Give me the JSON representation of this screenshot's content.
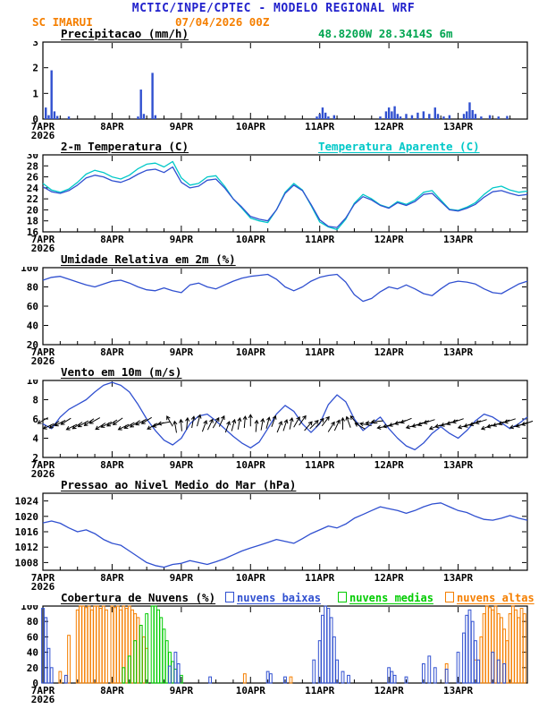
{
  "header": {
    "title": "MCTIC/INPE/CPTEC - MODELO REGIONAL WRF",
    "station": "SC IMARUI",
    "run": "07/04/2026 00Z",
    "coords": "48.8200W 28.3414S 6m"
  },
  "colors": {
    "header_blue": "#2222cc",
    "orange": "#f57f00",
    "green": "#00a550",
    "line_blue": "#3050d0",
    "cyan": "#00c8c8",
    "black": "#000000"
  },
  "xaxis": {
    "ticks": [
      "7APR",
      "8APR",
      "9APR",
      "10APR",
      "11APR",
      "12APR",
      "13APR"
    ],
    "year": "2026",
    "hours_total": 168,
    "tick_hours": [
      0,
      24,
      48,
      72,
      96,
      120,
      144
    ]
  },
  "chart_data": [
    {
      "type": "bar",
      "title": "Precipitacao (mm/h)",
      "ylim": [
        0,
        3
      ],
      "yticks": [
        0,
        1,
        2,
        3
      ],
      "bar_color": "#3050d0",
      "bars": [
        [
          1,
          0.45
        ],
        [
          2,
          0.15
        ],
        [
          3,
          1.9
        ],
        [
          4,
          0.3
        ],
        [
          5,
          0.12
        ],
        [
          9,
          0.1
        ],
        [
          33,
          0.1
        ],
        [
          34,
          1.15
        ],
        [
          35,
          0.2
        ],
        [
          38,
          1.8
        ],
        [
          39,
          0.15
        ],
        [
          95,
          0.1
        ],
        [
          96,
          0.2
        ],
        [
          97,
          0.45
        ],
        [
          98,
          0.25
        ],
        [
          99,
          0.1
        ],
        [
          101,
          0.15
        ],
        [
          117,
          0.1
        ],
        [
          119,
          0.3
        ],
        [
          120,
          0.45
        ],
        [
          121,
          0.3
        ],
        [
          122,
          0.5
        ],
        [
          123,
          0.2
        ],
        [
          124,
          0.1
        ],
        [
          126,
          0.2
        ],
        [
          128,
          0.15
        ],
        [
          130,
          0.25
        ],
        [
          132,
          0.3
        ],
        [
          134,
          0.2
        ],
        [
          136,
          0.45
        ],
        [
          137,
          0.2
        ],
        [
          139,
          0.1
        ],
        [
          141,
          0.15
        ],
        [
          146,
          0.2
        ],
        [
          147,
          0.3
        ],
        [
          148,
          0.65
        ],
        [
          149,
          0.35
        ],
        [
          150,
          0.2
        ],
        [
          152,
          0.1
        ],
        [
          155,
          0.15
        ],
        [
          158,
          0.1
        ],
        [
          161,
          0.12
        ]
      ]
    },
    {
      "type": "line",
      "title": "2-m Temperatura (C)",
      "right_label": "Temperatura Aparente (C)",
      "ylim": [
        16,
        30
      ],
      "yticks": [
        16,
        18,
        20,
        22,
        24,
        26,
        28,
        30
      ],
      "x_step": 3,
      "series": [
        {
          "name": "Temperatura Aparente (C)",
          "color": "#00c8c8",
          "values": [
            24.8,
            23.6,
            23.2,
            23.8,
            25.0,
            26.5,
            27.2,
            26.8,
            26.0,
            25.6,
            26.3,
            27.5,
            28.3,
            28.5,
            27.8,
            28.8,
            25.8,
            24.5,
            24.8,
            26.0,
            26.2,
            24.3,
            22.0,
            20.3,
            18.5,
            18.0,
            17.7,
            20.0,
            23.2,
            24.8,
            23.6,
            20.8,
            17.8,
            16.9,
            16.4,
            18.3,
            21.2,
            22.8,
            22.0,
            20.9,
            20.4,
            21.5,
            21.0,
            21.8,
            23.2,
            23.5,
            21.8,
            20.1,
            19.9,
            20.5,
            21.3,
            22.8,
            24.0,
            24.3,
            23.6,
            23.2,
            23.4
          ]
        },
        {
          "name": "2-m Temperatura (C)",
          "color": "#3050d0",
          "values": [
            24.2,
            23.3,
            23.0,
            23.5,
            24.5,
            25.8,
            26.3,
            26.0,
            25.3,
            25.0,
            25.6,
            26.5,
            27.2,
            27.4,
            26.8,
            27.8,
            25.0,
            24.0,
            24.3,
            25.4,
            25.6,
            24.0,
            22.0,
            20.5,
            18.8,
            18.3,
            18.0,
            20.0,
            23.0,
            24.5,
            23.5,
            21.0,
            18.2,
            17.0,
            16.8,
            18.5,
            21.0,
            22.4,
            21.8,
            20.8,
            20.3,
            21.3,
            20.8,
            21.5,
            22.8,
            23.0,
            21.5,
            20.0,
            19.8,
            20.3,
            21.0,
            22.3,
            23.3,
            23.5,
            23.0,
            22.6,
            22.8
          ]
        }
      ]
    },
    {
      "type": "line",
      "title": "Umidade Relativa em 2m (%)",
      "ylim": [
        20,
        100
      ],
      "yticks": [
        20,
        40,
        60,
        80,
        100
      ],
      "x_step": 3,
      "series": [
        {
          "name": "Umidade Relativa",
          "color": "#3050d0",
          "values": [
            87,
            90,
            91,
            88,
            85,
            82,
            80,
            83,
            86,
            87,
            84,
            80,
            77,
            76,
            79,
            76,
            74,
            82,
            84,
            80,
            78,
            82,
            86,
            89,
            91,
            92,
            93,
            88,
            80,
            76,
            80,
            86,
            90,
            92,
            93,
            85,
            72,
            65,
            68,
            75,
            80,
            78,
            82,
            78,
            73,
            71,
            78,
            84,
            86,
            85,
            83,
            78,
            74,
            73,
            78,
            83,
            86
          ]
        }
      ]
    },
    {
      "type": "line",
      "title": "Vento em 10m (m/s)",
      "ylim": [
        2,
        10
      ],
      "yticks": [
        2,
        4,
        6,
        8,
        10
      ],
      "x_step": 3,
      "series": [
        {
          "name": "Velocidade do vento",
          "color": "#3050d0",
          "values": [
            5.5,
            5.0,
            6.2,
            7.0,
            7.5,
            8.0,
            8.8,
            9.5,
            9.8,
            9.5,
            8.8,
            7.5,
            6.0,
            4.8,
            3.8,
            3.3,
            4.0,
            5.5,
            6.3,
            6.5,
            5.8,
            5.0,
            4.2,
            3.5,
            3.0,
            3.6,
            5.0,
            6.5,
            7.4,
            6.8,
            5.5,
            4.6,
            5.5,
            7.5,
            8.5,
            7.8,
            6.0,
            4.8,
            5.5,
            6.2,
            5.0,
            4.0,
            3.2,
            2.8,
            3.5,
            4.5,
            5.2,
            4.5,
            4.0,
            4.8,
            5.8,
            6.5,
            6.2,
            5.6,
            5.0,
            5.5,
            6.2
          ]
        }
      ],
      "arrows": {
        "y_value": 5.5,
        "step_h": 2,
        "color": "#000000",
        "deg": [
          210,
          205,
          215,
          208,
          212,
          206,
          214,
          210,
          216,
          209,
          213,
          207,
          211,
          215,
          206,
          210,
          214,
          208,
          212,
          210,
          200,
          190,
          120,
          100,
          95,
          85,
          80,
          75,
          70,
          65,
          60,
          65,
          70,
          75,
          80,
          85,
          90,
          85,
          80,
          75,
          70,
          68,
          72,
          78,
          60,
          55,
          50,
          45,
          48,
          52,
          58,
          65,
          90,
          110,
          130,
          150,
          170,
          180,
          185,
          190,
          195,
          200,
          198,
          202,
          196,
          200,
          204,
          198,
          200,
          195,
          198,
          202,
          199,
          196,
          200,
          203,
          198,
          201,
          197,
          200,
          202,
          198,
          195,
          200,
          199
        ]
      }
    },
    {
      "type": "line",
      "title": "Pressao ao Nivel Medio do Mar (hPa)",
      "ylim": [
        1006,
        1026
      ],
      "yticks": [
        1008,
        1012,
        1016,
        1020,
        1024
      ],
      "x_step": 3,
      "series": [
        {
          "name": "Pressao",
          "color": "#3050d0",
          "values": [
            1018.3,
            1018.8,
            1018.2,
            1017.0,
            1016.0,
            1016.5,
            1015.5,
            1014.0,
            1013.0,
            1012.5,
            1011.0,
            1009.5,
            1008.0,
            1007.2,
            1006.8,
            1007.5,
            1007.8,
            1008.5,
            1008.0,
            1007.5,
            1008.2,
            1009.0,
            1010.0,
            1011.0,
            1011.8,
            1012.5,
            1013.2,
            1014.0,
            1013.5,
            1013.0,
            1014.2,
            1015.5,
            1016.5,
            1017.5,
            1017.0,
            1018.0,
            1019.5,
            1020.5,
            1021.5,
            1022.5,
            1022.0,
            1021.5,
            1020.8,
            1021.5,
            1022.5,
            1023.2,
            1023.5,
            1022.5,
            1021.5,
            1021.0,
            1020.0,
            1019.2,
            1019.0,
            1019.5,
            1020.2,
            1019.5,
            1019.0
          ]
        }
      ]
    },
    {
      "type": "bar-multi",
      "title": "Cobertura de Nuvens (%)",
      "ylim": [
        0,
        100
      ],
      "yticks": [
        0,
        20,
        40,
        60,
        80,
        100
      ],
      "legend": [
        {
          "label": "nuvens baixas",
          "color": "#3050d0"
        },
        {
          "label": "nuvens medias",
          "color": "#00cc00"
        },
        {
          "label": "nuvens altas",
          "color": "#f57f00"
        }
      ],
      "series": [
        {
          "name": "nuvens altas",
          "color": "#f57f00",
          "bars": [
            [
              6,
              15
            ],
            [
              9,
              62
            ],
            [
              12,
              95
            ],
            [
              13,
              100
            ],
            [
              14,
              100
            ],
            [
              15,
              98
            ],
            [
              16,
              100
            ],
            [
              17,
              95
            ],
            [
              18,
              100
            ],
            [
              19,
              100
            ],
            [
              20,
              97
            ],
            [
              21,
              100
            ],
            [
              22,
              95
            ],
            [
              24,
              100
            ],
            [
              25,
              98
            ],
            [
              26,
              100
            ],
            [
              27,
              95
            ],
            [
              28,
              100
            ],
            [
              29,
              97
            ],
            [
              30,
              100
            ],
            [
              31,
              95
            ],
            [
              32,
              90
            ],
            [
              33,
              85
            ],
            [
              34,
              75
            ],
            [
              35,
              60
            ],
            [
              36,
              45
            ],
            [
              70,
              12
            ],
            [
              86,
              8
            ],
            [
              140,
              25
            ],
            [
              150,
              30
            ],
            [
              152,
              60
            ],
            [
              153,
              90
            ],
            [
              154,
              100
            ],
            [
              155,
              98
            ],
            [
              156,
              95
            ],
            [
              157,
              100
            ],
            [
              158,
              90
            ],
            [
              159,
              85
            ],
            [
              160,
              70
            ],
            [
              161,
              55
            ],
            [
              162,
              90
            ],
            [
              163,
              100
            ],
            [
              164,
              95
            ],
            [
              165,
              85
            ],
            [
              166,
              97
            ],
            [
              167,
              90
            ]
          ]
        },
        {
          "name": "nuvens medias",
          "color": "#00cc00",
          "bars": [
            [
              28,
              20
            ],
            [
              30,
              35
            ],
            [
              32,
              55
            ],
            [
              34,
              75
            ],
            [
              36,
              90
            ],
            [
              38,
              100
            ],
            [
              39,
              100
            ],
            [
              40,
              95
            ],
            [
              41,
              85
            ],
            [
              42,
              70
            ],
            [
              43,
              55
            ],
            [
              44,
              40
            ],
            [
              45,
              28
            ],
            [
              46,
              18
            ],
            [
              48,
              10
            ]
          ]
        },
        {
          "name": "nuvens baixas",
          "color": "#3050d0",
          "bars": [
            [
              0,
              97
            ],
            [
              1,
              85
            ],
            [
              2,
              45
            ],
            [
              3,
              20
            ],
            [
              8,
              10
            ],
            [
              44,
              22
            ],
            [
              46,
              40
            ],
            [
              47,
              25
            ],
            [
              58,
              8
            ],
            [
              78,
              15
            ],
            [
              79,
              12
            ],
            [
              84,
              8
            ],
            [
              94,
              30
            ],
            [
              96,
              55
            ],
            [
              97,
              88
            ],
            [
              98,
              100
            ],
            [
              99,
              97
            ],
            [
              100,
              85
            ],
            [
              101,
              60
            ],
            [
              102,
              30
            ],
            [
              104,
              15
            ],
            [
              106,
              10
            ],
            [
              120,
              20
            ],
            [
              121,
              15
            ],
            [
              122,
              10
            ],
            [
              126,
              8
            ],
            [
              132,
              25
            ],
            [
              134,
              35
            ],
            [
              136,
              20
            ],
            [
              140,
              18
            ],
            [
              144,
              40
            ],
            [
              146,
              65
            ],
            [
              147,
              88
            ],
            [
              148,
              95
            ],
            [
              149,
              80
            ],
            [
              150,
              55
            ],
            [
              151,
              30
            ],
            [
              156,
              40
            ],
            [
              158,
              30
            ],
            [
              160,
              25
            ]
          ]
        }
      ]
    }
  ]
}
